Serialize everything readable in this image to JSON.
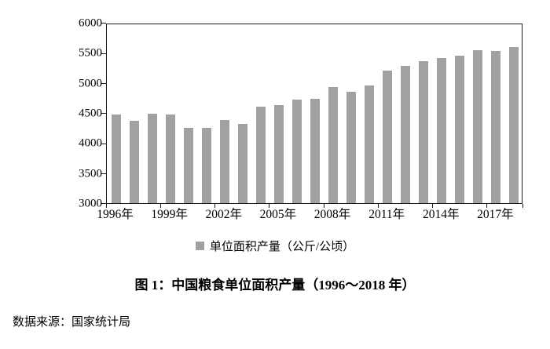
{
  "figure": {
    "title": "图 1：中国粮食单位面积产量（1996～2018 年）",
    "source": "数据来源：国家统计局",
    "legend_label": "单位面积产量（公斤/公顷）"
  },
  "chart_data": {
    "type": "bar",
    "title": "图 1：中国粮食单位面积产量（1996～2018 年）",
    "legend": [
      "单位面积产量（公斤/公顷）"
    ],
    "legend_position": "bottom",
    "grid": false,
    "bar_color": "#a1a1a1",
    "ylabel": "单位面积产量（公斤/公顷）",
    "xlabel": "",
    "ylim": [
      3000,
      6000
    ],
    "yticks": [
      3000,
      3500,
      4000,
      4500,
      5000,
      5500,
      6000
    ],
    "categories": [
      "1996",
      "1997",
      "1998",
      "1999",
      "2000",
      "2001",
      "2002",
      "2003",
      "2004",
      "2005",
      "2006",
      "2007",
      "2008",
      "2009",
      "2010",
      "2011",
      "2012",
      "2013",
      "2014",
      "2015",
      "2016",
      "2017",
      "2018"
    ],
    "values": [
      4483,
      4377,
      4502,
      4493,
      4261,
      4267,
      4399,
      4333,
      4620,
      4642,
      4742,
      4748,
      4951,
      4871,
      4974,
      5220,
      5300,
      5380,
      5440,
      5480,
      5570,
      5550,
      5620
    ],
    "xtick_labels": [
      "1996年",
      "1999年",
      "2002年",
      "2005年",
      "2008年",
      "2011年",
      "2014年",
      "2017年"
    ],
    "xtick_indices": [
      0,
      3,
      6,
      9,
      12,
      15,
      18,
      21
    ]
  }
}
